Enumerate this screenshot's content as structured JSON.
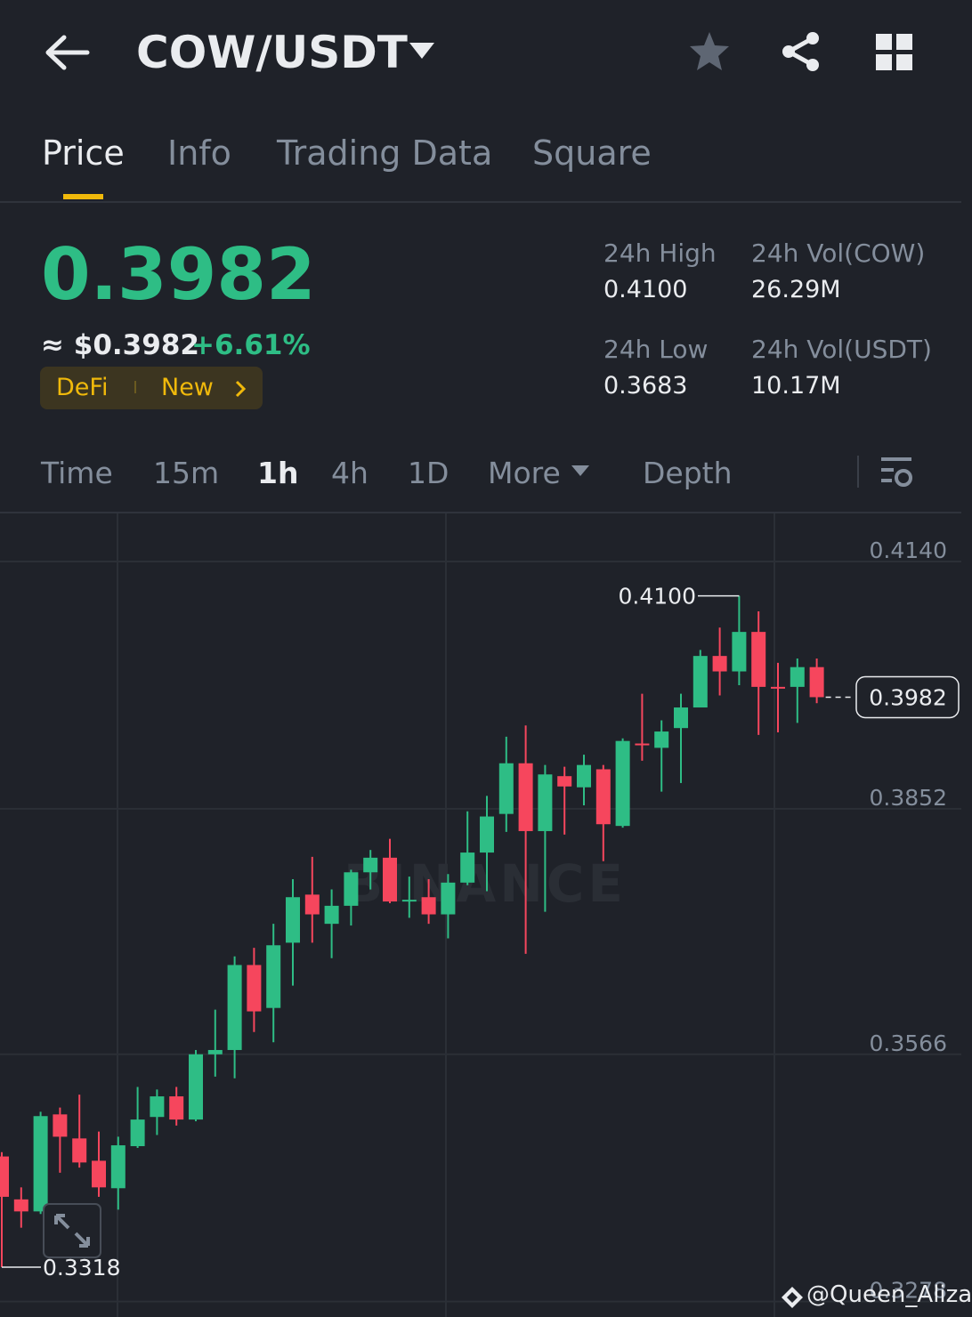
{
  "header": {
    "pair": "COW/USDT"
  },
  "tabs": [
    "Price",
    "Info",
    "Trading Data",
    "Square"
  ],
  "price": {
    "last": "0.3982",
    "fiat": "≈ $0.3982",
    "change": "+6.61%",
    "tags": [
      "DeFi",
      "New"
    ]
  },
  "stats": [
    {
      "label": "24h High",
      "value": "0.4100"
    },
    {
      "label": "24h Vol(COW)",
      "value": "26.29M"
    },
    {
      "label": "24h Low",
      "value": "0.3683"
    },
    {
      "label": "24h Vol(USDT)",
      "value": "10.17M"
    }
  ],
  "intervals": [
    "Time",
    "15m",
    "1h",
    "4h",
    "1D",
    "More",
    "Depth"
  ],
  "chart_data": {
    "type": "candlestick",
    "up_color": "#2ebd85",
    "down_color": "#f6465d",
    "ylim": [
      0.326,
      0.4196
    ],
    "yticks": [
      {
        "value": 0.414,
        "label": "0.4140"
      },
      0.3852,
      0.3566,
      0.3278
    ],
    "grid": true,
    "open": [
      0.3447,
      0.3397,
      0.3383,
      0.3496,
      0.3468,
      0.3442,
      0.341,
      0.3459,
      0.3493,
      0.3517,
      0.349,
      0.3566,
      0.3571,
      0.367,
      0.362,
      0.3696,
      0.3752,
      0.3718,
      0.3739,
      0.3778,
      0.3795,
      0.3745,
      0.3749,
      0.3729,
      0.3766,
      0.3801,
      0.3846,
      0.3905,
      0.3826,
      0.389,
      0.3877,
      0.3898,
      0.3832,
      0.3928,
      0.3923,
      0.3946,
      0.397,
      0.403,
      0.4012,
      0.4058,
      0.3994,
      0.3994,
      0.4017
    ],
    "high": [
      0.3452,
      0.3411,
      0.3499,
      0.3504,
      0.3519,
      0.3476,
      0.347,
      0.3528,
      0.3525,
      0.3528,
      0.3571,
      0.3618,
      0.368,
      0.369,
      0.3718,
      0.377,
      0.3796,
      0.3758,
      0.3781,
      0.3804,
      0.3817,
      0.3773,
      0.377,
      0.3776,
      0.3849,
      0.3867,
      0.3936,
      0.3949,
      0.3903,
      0.3901,
      0.3915,
      0.3903,
      0.3934,
      0.3986,
      0.3955,
      0.3986,
      0.4037,
      0.4063,
      0.41,
      0.4082,
      0.4022,
      0.4027,
      0.4027
    ],
    "low": [
      0.3318,
      0.3364,
      0.338,
      0.3428,
      0.3434,
      0.34,
      0.3385,
      0.3457,
      0.3472,
      0.3483,
      0.3488,
      0.354,
      0.3538,
      0.3592,
      0.358,
      0.3646,
      0.3696,
      0.3678,
      0.3716,
      0.3758,
      0.3742,
      0.3725,
      0.3718,
      0.3701,
      0.3763,
      0.3756,
      0.3825,
      0.3683,
      0.3732,
      0.3822,
      0.3856,
      0.3791,
      0.383,
      0.3908,
      0.3872,
      0.3882,
      0.397,
      0.3984,
      0.3996,
      0.3938,
      0.3941,
      0.3952,
      0.3975
    ],
    "close": [
      0.34,
      0.3383,
      0.3494,
      0.347,
      0.344,
      0.3411,
      0.346,
      0.349,
      0.3517,
      0.349,
      0.3566,
      0.3571,
      0.367,
      0.3616,
      0.3693,
      0.3749,
      0.3729,
      0.3739,
      0.3778,
      0.3795,
      0.3744,
      0.3746,
      0.3729,
      0.3766,
      0.3801,
      0.3843,
      0.3905,
      0.3826,
      0.3892,
      0.3878,
      0.3903,
      0.3834,
      0.3931,
      0.3926,
      0.3942,
      0.397,
      0.403,
      0.4012,
      0.4058,
      0.3994,
      0.3993,
      0.4017,
      0.3982
    ],
    "max_label": "0.4100",
    "min_label": "0.3318",
    "last_label": "0.3982",
    "watermark": "BINANCE"
  },
  "footer": {
    "handle": "@Queen_Aliza"
  }
}
